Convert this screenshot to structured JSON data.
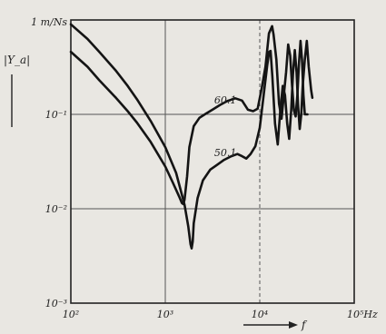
{
  "chart_data": {
    "type": "line",
    "title": "",
    "xlabel": "f",
    "ylabel": "|Y_a|",
    "x_scale": "log",
    "y_scale": "log",
    "xlim": [
      100,
      100000
    ],
    "ylim": [
      0.001,
      1
    ],
    "grid": true,
    "x_ticks": [
      {
        "value": 100,
        "label": "10²"
      },
      {
        "value": 1000,
        "label": "10³"
      },
      {
        "value": 10000,
        "label": "10⁴"
      },
      {
        "value": 100000,
        "label": "10⁵Hz"
      }
    ],
    "y_ticks": [
      {
        "value": 1,
        "label": "1 m/Ns"
      },
      {
        "value": 0.1,
        "label": "10⁻¹"
      },
      {
        "value": 0.01,
        "label": "10⁻²"
      },
      {
        "value": 0.001,
        "label": "10⁻³"
      }
    ],
    "series": [
      {
        "name": "60.1",
        "x": [
          100,
          150,
          200,
          300,
          400,
          500,
          700,
          1000,
          1200,
          1400,
          1500,
          1550,
          1600,
          1700,
          1800,
          2000,
          2300,
          2700,
          3200,
          3800,
          4500,
          5500,
          6500,
          7500,
          8500,
          9500,
          10500,
          11500,
          12500,
          13500,
          14000,
          15000,
          16000,
          17000,
          18000,
          19000,
          20000,
          21000,
          22000,
          23000,
          24000,
          25000,
          26000,
          27000,
          28000,
          29000,
          30000,
          32000
        ],
        "y": [
          0.46,
          0.32,
          0.23,
          0.15,
          0.108,
          0.082,
          0.051,
          0.028,
          0.019,
          0.0135,
          0.0115,
          0.0112,
          0.0125,
          0.022,
          0.045,
          0.075,
          0.092,
          0.102,
          0.113,
          0.126,
          0.138,
          0.148,
          0.14,
          0.112,
          0.108,
          0.115,
          0.19,
          0.32,
          0.72,
          0.86,
          0.7,
          0.38,
          0.13,
          0.09,
          0.16,
          0.28,
          0.55,
          0.42,
          0.2,
          0.11,
          0.095,
          0.16,
          0.35,
          0.6,
          0.38,
          0.16,
          0.1,
          0.1
        ]
      },
      {
        "name": "50.1",
        "x": [
          100,
          150,
          200,
          300,
          400,
          500,
          700,
          1000,
          1300,
          1600,
          1750,
          1850,
          1900,
          1950,
          2000,
          2200,
          2500,
          3000,
          3500,
          4200,
          5000,
          5800,
          6500,
          7200,
          8000,
          9000,
          10000,
          11000,
          12000,
          12600,
          13000,
          13600,
          14500,
          15500,
          16500,
          17500,
          18500,
          19500,
          20500,
          21500,
          22500,
          23500,
          24500,
          25500,
          26500,
          27500,
          28500,
          30000,
          31500,
          33000,
          35000,
          36000
        ],
        "y": [
          0.9,
          0.63,
          0.46,
          0.29,
          0.2,
          0.145,
          0.085,
          0.045,
          0.024,
          0.011,
          0.0065,
          0.0042,
          0.0038,
          0.0045,
          0.007,
          0.013,
          0.02,
          0.026,
          0.029,
          0.033,
          0.036,
          0.038,
          0.036,
          0.034,
          0.038,
          0.046,
          0.072,
          0.16,
          0.33,
          0.46,
          0.47,
          0.25,
          0.08,
          0.048,
          0.11,
          0.2,
          0.16,
          0.08,
          0.055,
          0.11,
          0.27,
          0.48,
          0.28,
          0.12,
          0.07,
          0.1,
          0.2,
          0.38,
          0.6,
          0.32,
          0.18,
          0.15
        ]
      }
    ],
    "annotations": [
      {
        "text": "60.1",
        "x": 3300,
        "y": 0.13
      },
      {
        "text": "50.1",
        "x": 3300,
        "y": 0.036
      }
    ]
  },
  "colors": {
    "background": "#e9e7e2",
    "ink": "#141414",
    "grid": "#555555"
  }
}
